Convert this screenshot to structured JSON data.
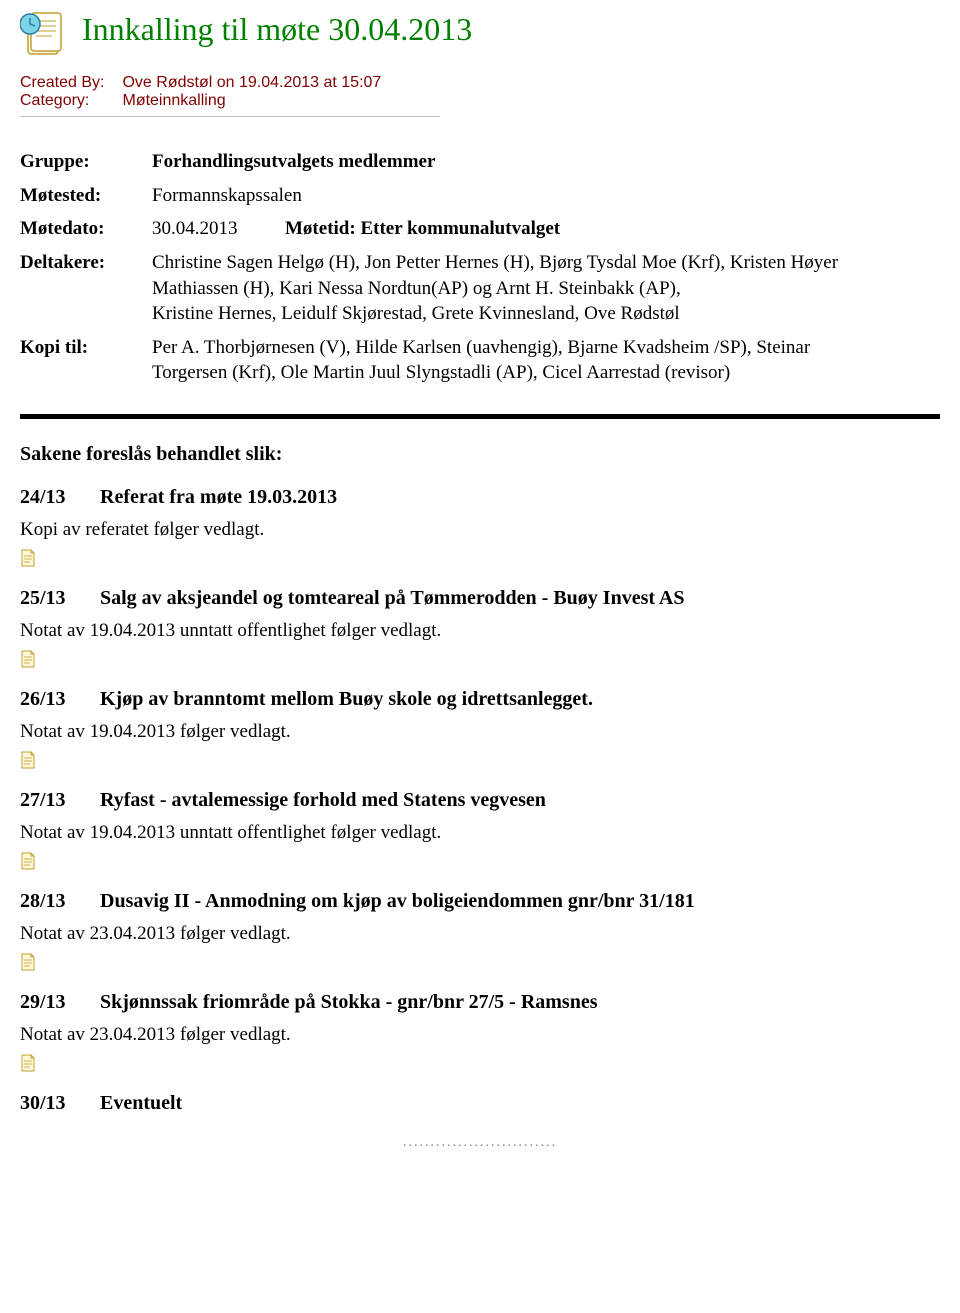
{
  "title": "Innkalling til møte 30.04.2013",
  "meta": {
    "created_by_label": "Created By:",
    "created_by_value": "Ove Rødstøl on 19.04.2013 at 15:07",
    "category_label": "Category:",
    "category_value": "Møteinnkalling"
  },
  "info": {
    "gruppe_label": "Gruppe:",
    "gruppe_value": "Forhandlingsutvalgets medlemmer",
    "motested_label": "Møtested:",
    "motested_value": "Formannskapssalen",
    "motedato_label": "Møtedato:",
    "motedato_value": "30.04.2013",
    "motetid_label_value": "Møtetid: Etter kommunalutvalget",
    "deltakere_label": "Deltakere:",
    "deltakere_value": "Christine Sagen Helgø (H), Jon Petter Hernes (H), Bjørg Tysdal Moe (Krf), Kristen Høyer Mathiassen (H), Kari Nessa Nordtun(AP) og Arnt H. Steinbakk (AP),\nKristine Hernes, Leidulf Skjørestad, Grete Kvinnesland, Ove Rødstøl",
    "kopi_label": "Kopi til:",
    "kopi_value": "Per A. Thorbjørnesen (V), Hilde Karlsen (uavhengig), Bjarne Kvadsheim /SP), Steinar Torgersen (Krf), Ole Martin Juul Slyngstadli (AP), Cicel Aarrestad (revisor)"
  },
  "section_heading": "Sakene foreslås behandlet slik:",
  "agenda": [
    {
      "num": "24/13",
      "title": "Referat fra møte 19.03.2013",
      "note": "Kopi av referatet følger vedlagt.",
      "attachment": true
    },
    {
      "num": "25/13",
      "title": "Salg av aksjeandel og tomteareal på Tømmerodden - Buøy Invest AS",
      "note": "Notat av 19.04.2013 unntatt offentlighet følger vedlagt.",
      "attachment": true
    },
    {
      "num": "26/13",
      "title": "Kjøp av branntomt mellom Buøy skole og idrettsanlegget.",
      "note": "Notat av 19.04.2013 følger vedlagt.",
      "attachment": true
    },
    {
      "num": "27/13",
      "title": "Ryfast - avtalemessige forhold med Statens vegvesen",
      "note": "Notat av 19.04.2013 unntatt offentlighet følger vedlagt.",
      "attachment": true
    },
    {
      "num": "28/13",
      "title": "Dusavig II - Anmodning om kjøp av boligeiendommen gnr/bnr 31/181",
      "note": "Notat av 23.04.2013 følger vedlagt.",
      "attachment": true
    },
    {
      "num": "29/13",
      "title": "Skjønnssak friområde på Stokka - gnr/bnr 27/5 - Ramsnes",
      "note": "Notat av 23.04.2013 følger vedlagt.",
      "attachment": true
    },
    {
      "num": "30/13",
      "title": "Eventuelt",
      "note": "",
      "attachment": false
    }
  ],
  "colors": {
    "title": "#008000",
    "meta_text": "#800000",
    "separator": "#c0c0c0",
    "dots": "#808080",
    "attach_fill": "#fff7d9",
    "attach_stroke": "#c0a030"
  },
  "dots": "............................"
}
